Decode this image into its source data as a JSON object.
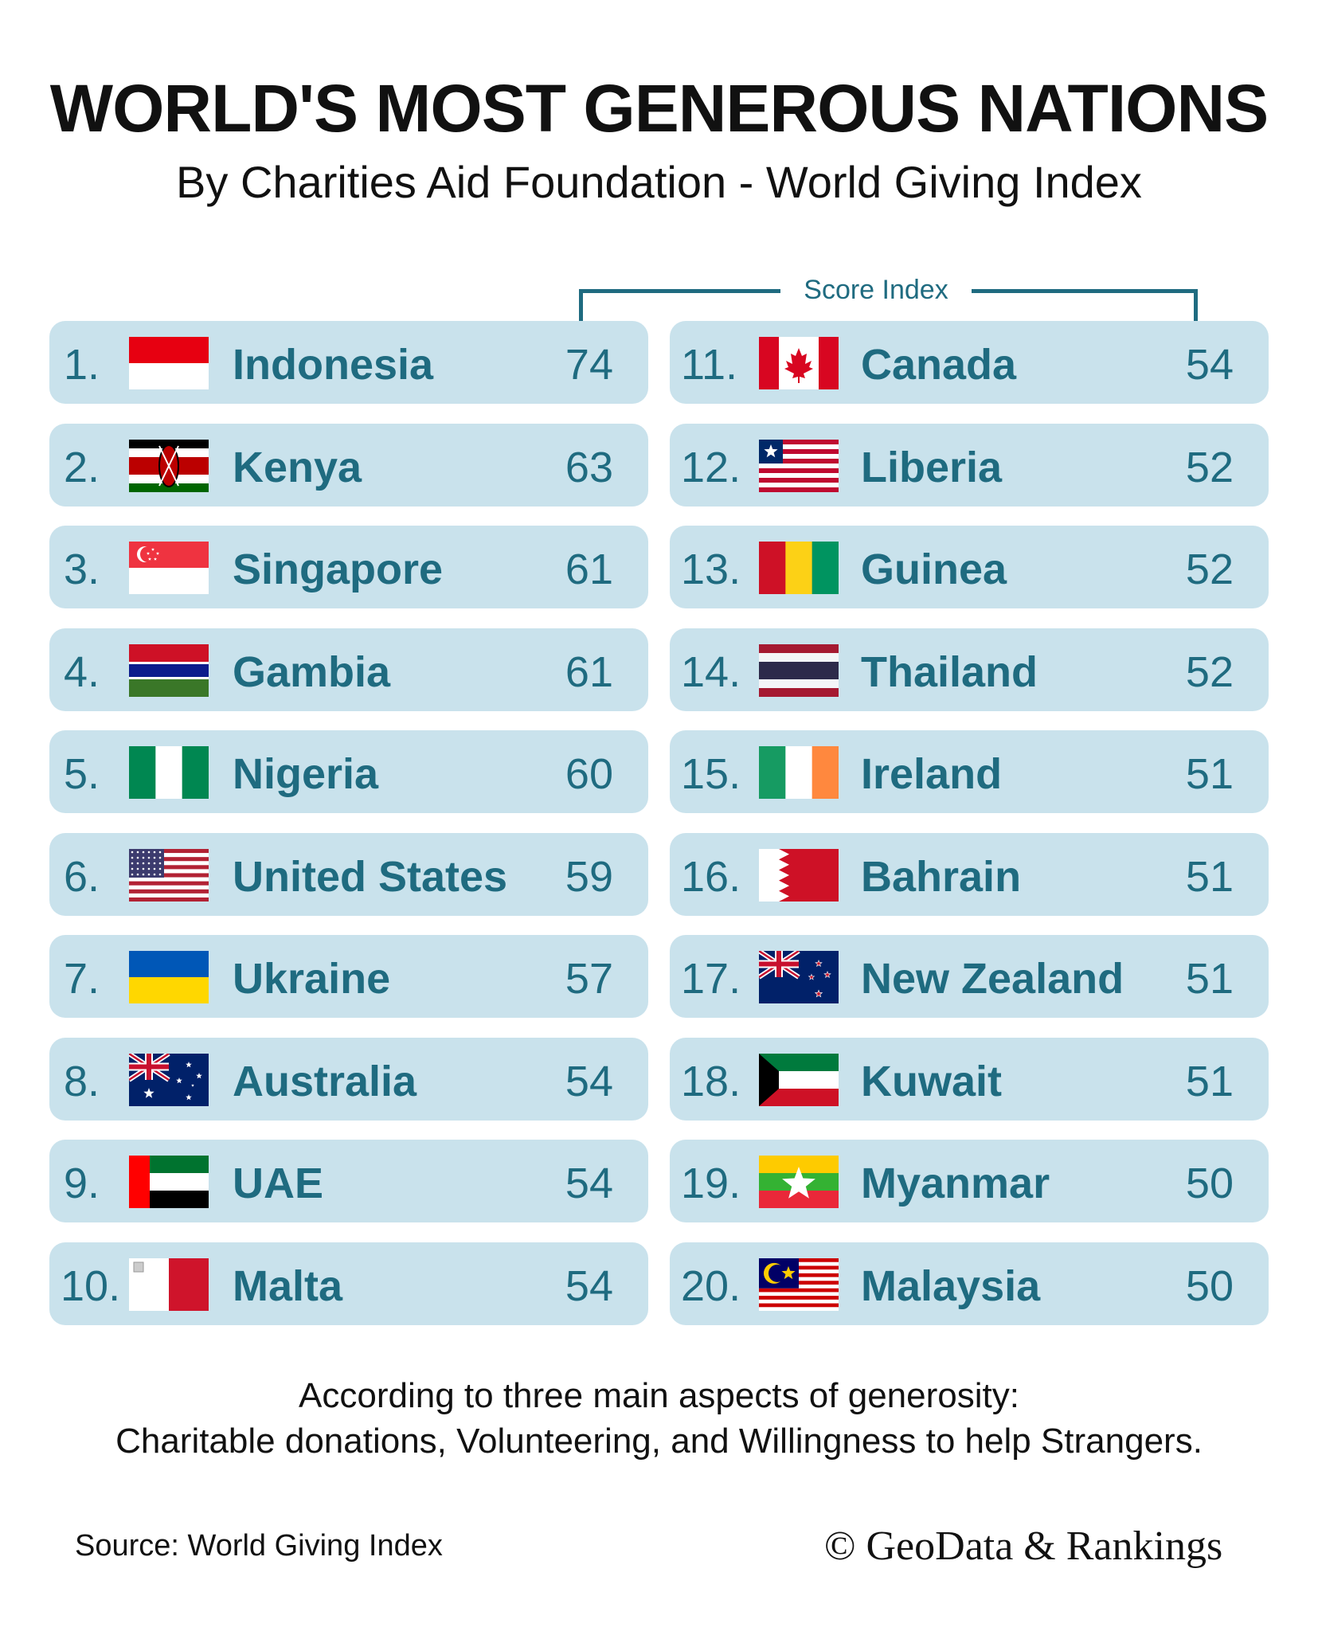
{
  "header": {
    "title": "WORLD'S MOST GENEROUS NATIONS",
    "subtitle": "By Charities Aid Foundation - World Giving Index"
  },
  "score_header": "Score Index",
  "rankings": [
    {
      "rank": "1.",
      "country": "Indonesia",
      "score": "74",
      "flag": "indonesia-flag"
    },
    {
      "rank": "2.",
      "country": "Kenya",
      "score": "63",
      "flag": "kenya-flag"
    },
    {
      "rank": "3.",
      "country": "Singapore",
      "score": "61",
      "flag": "singapore-flag"
    },
    {
      "rank": "4.",
      "country": "Gambia",
      "score": "61",
      "flag": "gambia-flag"
    },
    {
      "rank": "5.",
      "country": "Nigeria",
      "score": "60",
      "flag": "nigeria-flag"
    },
    {
      "rank": "6.",
      "country": "United States",
      "score": "59",
      "flag": "united-states-flag"
    },
    {
      "rank": "7.",
      "country": "Ukraine",
      "score": "57",
      "flag": "ukraine-flag"
    },
    {
      "rank": "8.",
      "country": "Australia",
      "score": "54",
      "flag": "australia-flag"
    },
    {
      "rank": "9.",
      "country": "UAE",
      "score": "54",
      "flag": "uae-flag"
    },
    {
      "rank": "10.",
      "country": "Malta",
      "score": "54",
      "flag": "malta-flag"
    },
    {
      "rank": "11.",
      "country": "Canada",
      "score": "54",
      "flag": "canada-flag"
    },
    {
      "rank": "12.",
      "country": "Liberia",
      "score": "52",
      "flag": "liberia-flag"
    },
    {
      "rank": "13.",
      "country": "Guinea",
      "score": "52",
      "flag": "guinea-flag"
    },
    {
      "rank": "14.",
      "country": "Thailand",
      "score": "52",
      "flag": "thailand-flag"
    },
    {
      "rank": "15.",
      "country": "Ireland",
      "score": "51",
      "flag": "ireland-flag"
    },
    {
      "rank": "16.",
      "country": "Bahrain",
      "score": "51",
      "flag": "bahrain-flag"
    },
    {
      "rank": "17.",
      "country": "New Zealand",
      "score": "51",
      "flag": "new-zealand-flag"
    },
    {
      "rank": "18.",
      "country": "Kuwait",
      "score": "51",
      "flag": "kuwait-flag"
    },
    {
      "rank": "19.",
      "country": "Myanmar",
      "score": "50",
      "flag": "myanmar-flag"
    },
    {
      "rank": "20.",
      "country": "Malaysia",
      "score": "50",
      "flag": "malaysia-flag"
    }
  ],
  "note": {
    "line1": "According to three main aspects of generosity:",
    "line2": "Charitable donations, Volunteering, and Willingness to help Strangers."
  },
  "footer": {
    "source": "Source: World Giving Index",
    "credit": "© GeoData & Rankings"
  },
  "colors": {
    "card": "#c9e2ec",
    "accent_text": "#1f6b80",
    "title_text": "#111111"
  }
}
